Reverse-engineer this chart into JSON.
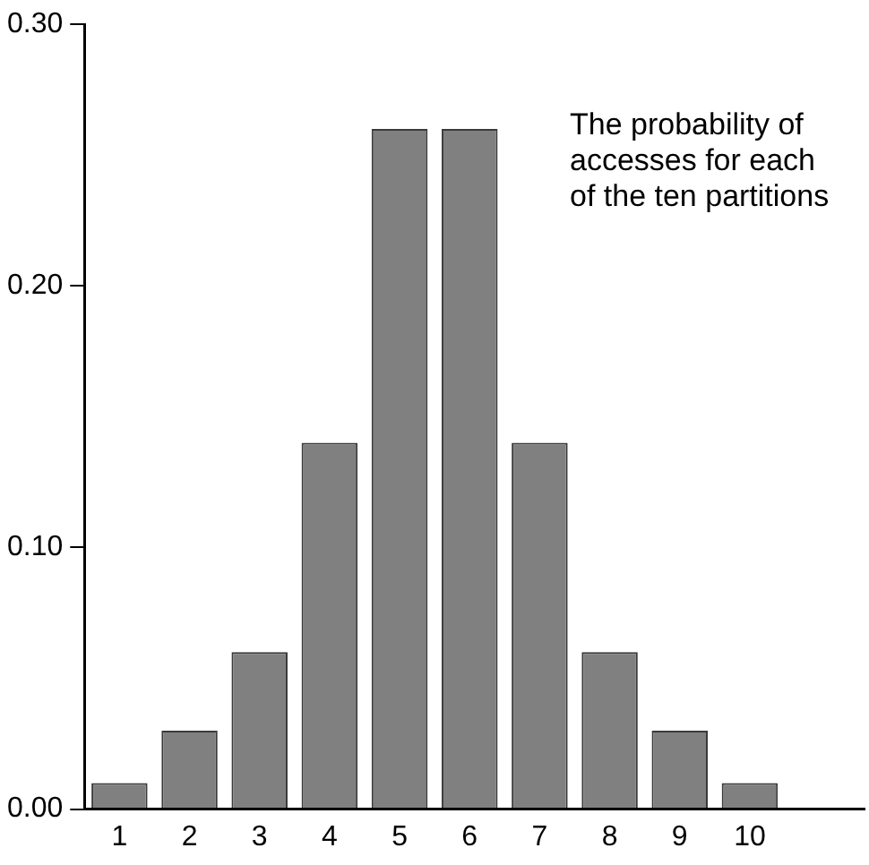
{
  "chart_data": {
    "type": "bar",
    "categories": [
      "1",
      "2",
      "3",
      "4",
      "5",
      "6",
      "7",
      "8",
      "9",
      "10"
    ],
    "values": [
      0.01,
      0.03,
      0.06,
      0.14,
      0.26,
      0.26,
      0.14,
      0.06,
      0.03,
      0.01
    ],
    "color": "#808080",
    "ylim": [
      0,
      0.3
    ],
    "yticks": [
      {
        "value": 0,
        "label": "0.00"
      },
      {
        "value": 0.1,
        "label": "0.10"
      },
      {
        "value": 0.2,
        "label": "0.20"
      },
      {
        "value": 0.3,
        "label": "0.30"
      }
    ],
    "grid": false,
    "legend": false,
    "annotations": [
      "The probability of\naccesses for each\nof the ten partitions"
    ]
  }
}
